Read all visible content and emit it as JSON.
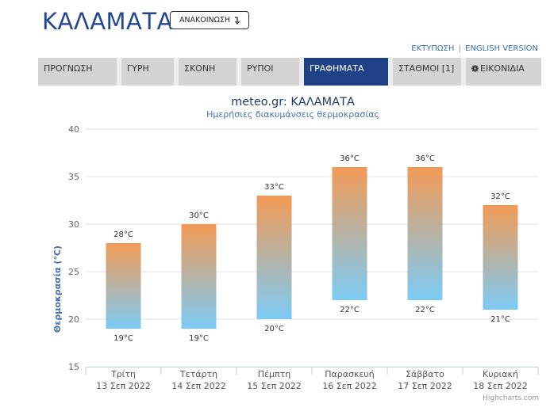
{
  "page": {
    "city_title": "ΚΑΛΑΜΑΤΑ"
  },
  "announce": {
    "label": "ΑΝΑΚΟΙΝΩΣΗ",
    "icon": "arrow-down-icon"
  },
  "links": {
    "print": "ΕΚΤΥΠΩΣΗ",
    "separator": "|",
    "english": "ENGLISH VERSION"
  },
  "tabs": [
    {
      "label": "ΠΡΟΓΝΩΣΗ"
    },
    {
      "label": "ΓΥΡΗ"
    },
    {
      "label": "ΣΚΟΝΗ"
    },
    {
      "label": "ΡΥΠΟΙ"
    },
    {
      "label": "ΓΡΑΦΗΜΑΤΑ",
      "active": true
    },
    {
      "label": "ΣΤΑΘΜΟΙ [1]"
    },
    {
      "label": "ΕΙΚΟΝΙΔΙΑ",
      "icon": "cog-icon"
    }
  ],
  "colors": {
    "accent": "#1f4287",
    "bar_top": "#f29a55",
    "bar_bottom": "#7ccbf5"
  },
  "chart_data": {
    "type": "bar",
    "subtype": "columnrange",
    "title": "meteo.gr: ΚΑΛΑΜΑΤΑ",
    "subtitle": "Ημερήσιες διακυμάνσεις θερμοκρασίας",
    "ylabel": "Θερμοκρασία (°C)",
    "ylim": [
      15,
      40
    ],
    "yticks": [
      15,
      20,
      25,
      30,
      35,
      40
    ],
    "grid": true,
    "categories": [
      {
        "day": "Τρίτη",
        "date": "13 Σεπ 2022"
      },
      {
        "day": "Τετάρτη",
        "date": "14 Σεπ 2022"
      },
      {
        "day": "Πέμπτη",
        "date": "15 Σεπ 2022"
      },
      {
        "day": "Παρασκευή",
        "date": "16 Σεπ 2022"
      },
      {
        "day": "Σάββατο",
        "date": "17 Σεπ 2022"
      },
      {
        "day": "Κυριακή",
        "date": "18 Σεπ 2022"
      }
    ],
    "low": [
      19,
      19,
      20,
      22,
      22,
      21
    ],
    "high": [
      28,
      30,
      33,
      36,
      36,
      32
    ],
    "unit": "°C",
    "credit": "Highcharts.com"
  }
}
